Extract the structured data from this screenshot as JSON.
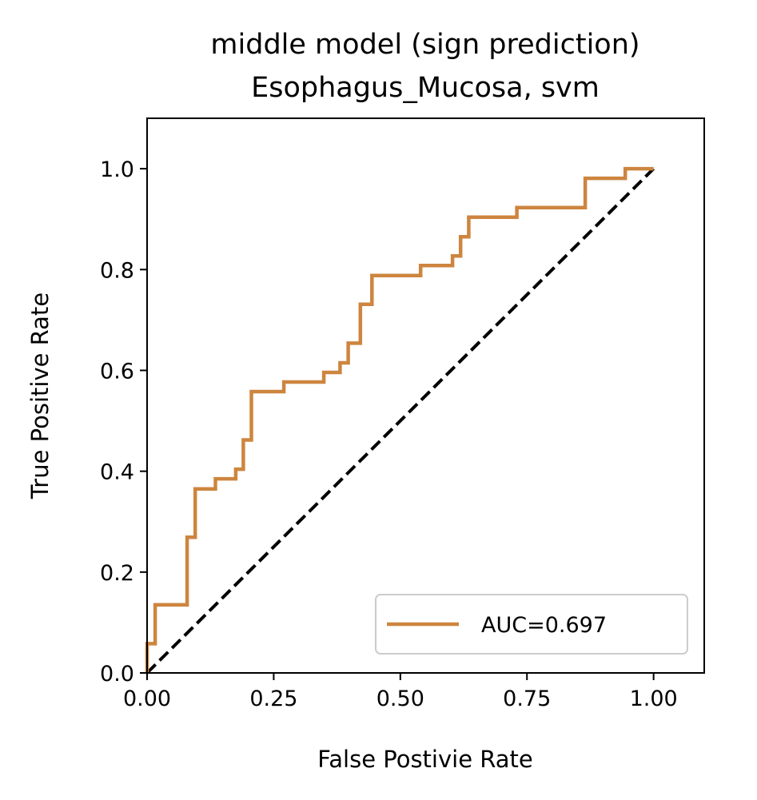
{
  "chart_data": {
    "type": "line",
    "title": "middle model (sign prediction)",
    "subtitle": "Esophagus_Mucosa, svm",
    "xlabel": "False Postivie Rate",
    "ylabel": "True Positive Rate",
    "xlim": [
      0.0,
      1.1
    ],
    "ylim": [
      0.0,
      1.1
    ],
    "xticks": [
      0.0,
      0.25,
      0.5,
      0.75,
      1.0
    ],
    "xtick_labels": [
      "0.00",
      "0.25",
      "0.50",
      "0.75",
      "1.00"
    ],
    "yticks": [
      0.0,
      0.2,
      0.4,
      0.6,
      0.8,
      1.0
    ],
    "ytick_labels": [
      "0.0",
      "0.2",
      "0.4",
      "0.6",
      "0.8",
      "1.0"
    ],
    "grid": false,
    "legend_position": "lower-right",
    "series": [
      {
        "name": "AUC=0.697",
        "color": "#cd853f",
        "style": "solid",
        "x": [
          0.0,
          0.0,
          0.016,
          0.016,
          0.079,
          0.079,
          0.095,
          0.095,
          0.135,
          0.135,
          0.175,
          0.175,
          0.19,
          0.19,
          0.206,
          0.206,
          0.27,
          0.27,
          0.349,
          0.349,
          0.381,
          0.381,
          0.397,
          0.397,
          0.421,
          0.421,
          0.444,
          0.444,
          0.54,
          0.54,
          0.603,
          0.603,
          0.619,
          0.619,
          0.635,
          0.635,
          0.73,
          0.73,
          0.865,
          0.865,
          0.944,
          0.944,
          1.0
        ],
        "y": [
          0.0,
          0.058,
          0.058,
          0.135,
          0.135,
          0.269,
          0.269,
          0.365,
          0.365,
          0.385,
          0.385,
          0.404,
          0.404,
          0.462,
          0.462,
          0.558,
          0.558,
          0.577,
          0.577,
          0.596,
          0.596,
          0.615,
          0.615,
          0.654,
          0.654,
          0.731,
          0.731,
          0.788,
          0.788,
          0.808,
          0.808,
          0.827,
          0.827,
          0.865,
          0.865,
          0.904,
          0.904,
          0.923,
          0.923,
          0.981,
          0.981,
          1.0,
          1.0
        ]
      },
      {
        "name": "",
        "color": "#000000",
        "style": "dashed",
        "x": [
          0.0,
          1.0
        ],
        "y": [
          0.0,
          1.0
        ]
      }
    ]
  }
}
